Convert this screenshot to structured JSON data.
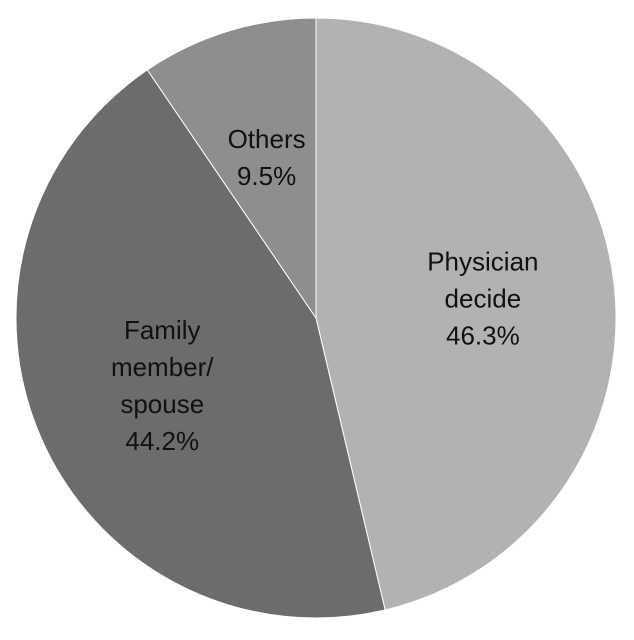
{
  "chart_data": {
    "type": "pie",
    "title": "",
    "start_angle_deg": 0,
    "direction": "clockwise",
    "slices": [
      {
        "category": "Physician decide",
        "value": 46.3,
        "label_lines": [
          "Physician",
          "decide",
          "46.3%"
        ],
        "color": "#b2b2b2"
      },
      {
        "category": "Family member/ spouse",
        "value": 44.2,
        "label_lines": [
          "Family",
          "member/",
          "spouse",
          "44.2%"
        ],
        "color": "#6c6c6c"
      },
      {
        "category": "Others",
        "value": 9.5,
        "label_lines": [
          "Others",
          "9.5%"
        ],
        "color": "#8e8e8e"
      }
    ]
  }
}
